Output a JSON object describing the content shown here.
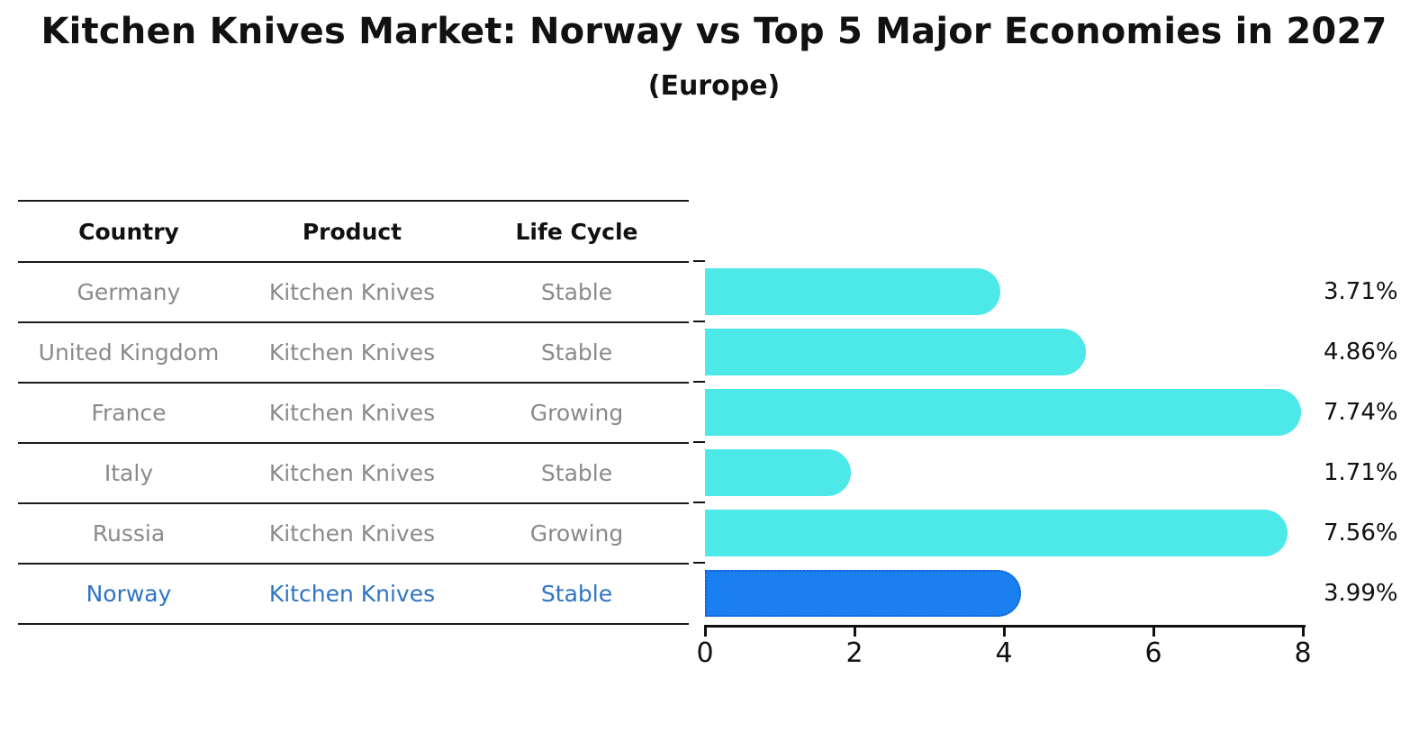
{
  "title": "Kitchen Knives Market: Norway vs Top 5 Major Economies in 2027",
  "subtitle": "(Europe)",
  "table": {
    "headers": [
      "Country",
      "Product",
      "Life Cycle"
    ],
    "rows": [
      {
        "country": "Germany",
        "product": "Kitchen Knives",
        "life_cycle": "Stable",
        "highlight": false
      },
      {
        "country": "United Kingdom",
        "product": "Kitchen Knives",
        "life_cycle": "Stable",
        "highlight": false
      },
      {
        "country": "France",
        "product": "Kitchen Knives",
        "life_cycle": "Growing",
        "highlight": false
      },
      {
        "country": "Italy",
        "product": "Kitchen Knives",
        "life_cycle": "Stable",
        "highlight": false
      },
      {
        "country": "Russia",
        "product": "Kitchen Knives",
        "life_cycle": "Growing",
        "highlight": false
      },
      {
        "country": "Norway",
        "product": "Kitchen Knives",
        "life_cycle": "Stable",
        "highlight": true
      }
    ]
  },
  "chart_data": {
    "type": "bar",
    "orientation": "horizontal",
    "categories": [
      "Germany",
      "United Kingdom",
      "France",
      "Italy",
      "Russia",
      "Norway"
    ],
    "values": [
      3.71,
      4.86,
      7.74,
      1.71,
      7.56,
      3.99
    ],
    "value_labels": [
      "3.71%",
      "4.86%",
      "7.74%",
      "1.71%",
      "7.56%",
      "3.99%"
    ],
    "highlight_index": 5,
    "xlim": [
      0,
      8
    ],
    "x_ticks": [
      0,
      2,
      4,
      6,
      8
    ],
    "grid": false,
    "legend": false,
    "bar_color": "#4DE9E9",
    "highlight_bar_color": "#1A80F0",
    "highlight_bar_border_color": "#0D5FD6",
    "highlight_text_color": "#2f74c4"
  }
}
